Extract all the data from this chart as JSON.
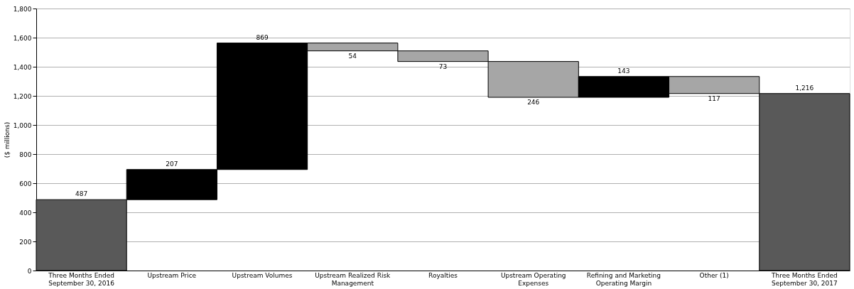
{
  "chart_data": {
    "type": "bar",
    "ylabel": "($ millions)",
    "categories": [
      "Three Months Ended September 30, 2016",
      "Upstream Price",
      "Upstream Volumes",
      "Upstream Realized Risk Management",
      "Royalties",
      "Upstream Operating Expenses",
      "Refining and Marketing Operating Margin",
      "Other (1)",
      "Three Months Ended September 30, 2017"
    ],
    "values": [
      487,
      207,
      869,
      -54,
      -73,
      -246,
      143,
      -117,
      1216
    ],
    "base": [
      null,
      487,
      694,
      1563,
      1509,
      1436,
      1190,
      1333,
      null
    ],
    "colors": [
      "#595959",
      "#000000",
      "#000000",
      "#a6a6a6",
      "#a6a6a6",
      "#a6a6a6",
      "#000000",
      "#a6a6a6",
      "#595959"
    ],
    "value_labels": [
      "487",
      "207",
      "869",
      "54",
      "73",
      "246",
      "143",
      "117",
      "1,216"
    ],
    "ylim": [
      0,
      1800
    ],
    "yticks": [
      0,
      200,
      400,
      600,
      800,
      {
        "value": 1000,
        "label": "1,000"
      },
      {
        "value": 1200,
        "label": "1,200"
      },
      {
        "value": 1400,
        "label": "1,400"
      },
      {
        "value": 1600,
        "label": "1,600"
      },
      {
        "value": 1800,
        "label": "1,800"
      }
    ],
    "grid": "y"
  }
}
